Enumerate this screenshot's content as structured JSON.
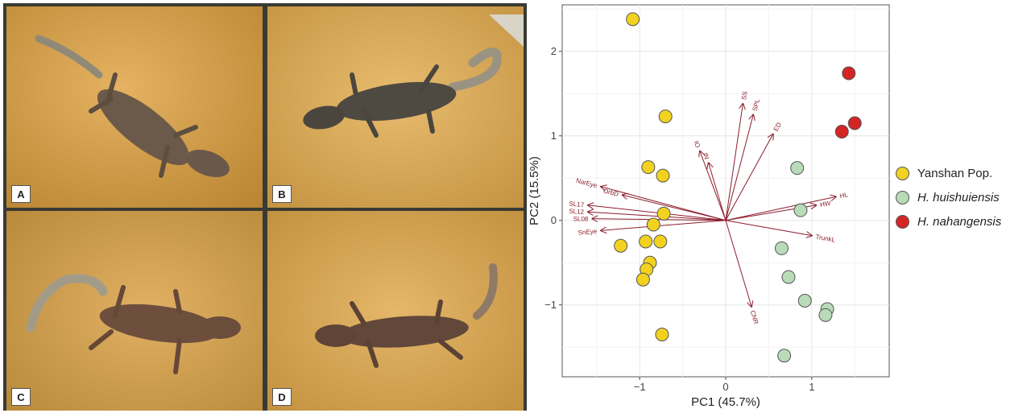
{
  "photos": {
    "panels": [
      {
        "label": "A",
        "content": "gecko-photo"
      },
      {
        "label": "B",
        "content": "gecko-photo"
      },
      {
        "label": "C",
        "content": "gecko-photo"
      },
      {
        "label": "D",
        "content": "gecko-photo"
      }
    ]
  },
  "chart_data": {
    "type": "scatter",
    "title": "",
    "xlabel": "PC1 (45.7%)",
    "ylabel": "PC2 (15.5%)",
    "xlim": [
      -1.9,
      1.9
    ],
    "ylim": [
      -1.85,
      2.55
    ],
    "xticks": [
      -1,
      0,
      1
    ],
    "yticks": [
      -1,
      0,
      1,
      2
    ],
    "grid": true,
    "legend_position": "right",
    "series": [
      {
        "name": "Yanshan Pop.",
        "color": "#f2d21f",
        "points": [
          [
            -1.08,
            2.38
          ],
          [
            -0.7,
            1.23
          ],
          [
            -0.9,
            0.63
          ],
          [
            -0.73,
            0.53
          ],
          [
            -0.72,
            0.08
          ],
          [
            -0.84,
            -0.05
          ],
          [
            -1.22,
            -0.3
          ],
          [
            -0.93,
            -0.25
          ],
          [
            -0.76,
            -0.25
          ],
          [
            -0.88,
            -0.5
          ],
          [
            -0.92,
            -0.58
          ],
          [
            -0.96,
            -0.7
          ],
          [
            -0.74,
            -1.35
          ]
        ]
      },
      {
        "name": "H. huishuiensis",
        "color": "#b9dbb8",
        "points": [
          [
            0.83,
            0.62
          ],
          [
            0.87,
            0.12
          ],
          [
            0.65,
            -0.33
          ],
          [
            0.73,
            -0.67
          ],
          [
            0.92,
            -0.95
          ],
          [
            1.18,
            -1.05
          ],
          [
            1.16,
            -1.12
          ],
          [
            0.68,
            -1.6
          ]
        ]
      },
      {
        "name": "H. nahangensis",
        "color": "#d42424",
        "points": [
          [
            1.43,
            1.74
          ],
          [
            1.5,
            1.15
          ],
          [
            1.35,
            1.05
          ]
        ]
      }
    ],
    "loadings": [
      {
        "label": "HL",
        "x": 1.28,
        "y": 0.28
      },
      {
        "label": "HW",
        "x": 1.05,
        "y": 0.18
      },
      {
        "label": "TrunkL",
        "x": 1.0,
        "y": -0.18
      },
      {
        "label": "ED",
        "x": 0.55,
        "y": 1.02
      },
      {
        "label": "SS",
        "x": 0.2,
        "y": 1.38
      },
      {
        "label": "SPL",
        "x": 0.32,
        "y": 1.25
      },
      {
        "label": "IO",
        "x": -0.3,
        "y": 0.82
      },
      {
        "label": "IN",
        "x": -0.2,
        "y": 0.68
      },
      {
        "label": "NarEye",
        "x": -1.45,
        "y": 0.4
      },
      {
        "label": "OrbD",
        "x": -1.2,
        "y": 0.3
      },
      {
        "label": "SL17",
        "x": -1.6,
        "y": 0.18
      },
      {
        "label": "SL12",
        "x": -1.6,
        "y": 0.1
      },
      {
        "label": "SL08",
        "x": -1.55,
        "y": 0.02
      },
      {
        "label": "SnEye",
        "x": -1.45,
        "y": -0.12
      },
      {
        "label": "CNR",
        "x": 0.3,
        "y": -1.02
      }
    ]
  }
}
